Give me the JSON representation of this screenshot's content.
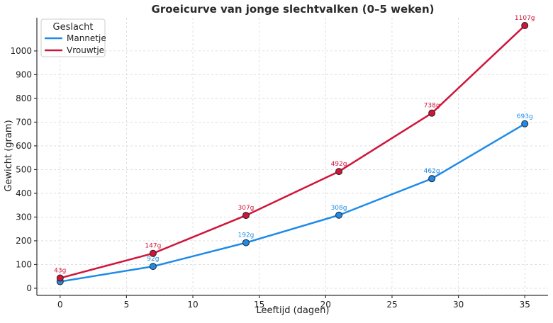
{
  "chart_data": {
    "type": "line",
    "title": "Groeicurve van jonge slechtvalken (0–5 weken)",
    "xlabel": "Leeftijd (dagen)",
    "ylabel": "Gewicht (gram)",
    "x": [
      0,
      7,
      14,
      21,
      28,
      35
    ],
    "xlim": [
      -1.75,
      36.75
    ],
    "ylim": [
      -30,
      1140
    ],
    "xticks": [
      0,
      5,
      10,
      15,
      20,
      25,
      30,
      35
    ],
    "yticks": [
      0,
      100,
      200,
      300,
      400,
      500,
      600,
      700,
      800,
      900,
      1000
    ],
    "grid": true,
    "legend": {
      "title": "Geslacht",
      "placement": "top-left"
    },
    "series": [
      {
        "name": "Mannetje",
        "color": "#1f8be8",
        "values": [
          28,
          92,
          192,
          308,
          462,
          693
        ],
        "labels": [
          "",
          "92g",
          "192g",
          "308g",
          "462g",
          "693g"
        ]
      },
      {
        "name": "Vrouwtje",
        "color": "#d0153a",
        "values": [
          43,
          147,
          307,
          492,
          738,
          1107
        ],
        "labels": [
          "43g",
          "147g",
          "307g",
          "492g",
          "738g",
          "1107g"
        ]
      }
    ]
  }
}
